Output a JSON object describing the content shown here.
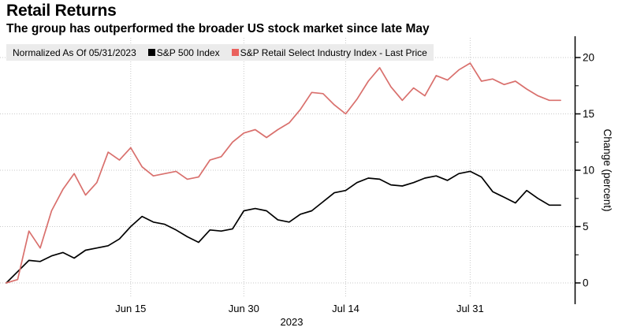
{
  "header": {
    "title": "Retail Returns",
    "subtitle": "The group has outperformed the broader US stock market since late May"
  },
  "legend": {
    "note": "Normalized As Of 05/31/2023",
    "items": [
      {
        "label": "S&P 500 Index",
        "color": "#000000"
      },
      {
        "label": "S&P Retail Select Industry Index - Last Price",
        "color": "#ea625e"
      }
    ]
  },
  "chart_data": {
    "type": "line",
    "title": "Retail Returns",
    "subtitle": "The group has outperformed the broader US stock market since late May",
    "note": "Normalized As Of 05/31/2023",
    "xlabel": "2023",
    "ylabel": "Change (percent)",
    "ylim": [
      -2,
      21.5
    ],
    "yticks": [
      0,
      5,
      10,
      15,
      20
    ],
    "yticks_minor": [
      2.5,
      7.5,
      12.5,
      17.5
    ],
    "grid": "dotted",
    "legend_position": "top",
    "axis_side": "right",
    "x": [
      "05/31",
      "06/01",
      "06/02",
      "06/05",
      "06/06",
      "06/07",
      "06/08",
      "06/09",
      "06/12",
      "06/13",
      "06/14",
      "06/15",
      "06/16",
      "06/20",
      "06/21",
      "06/22",
      "06/23",
      "06/26",
      "06/27",
      "06/28",
      "06/29",
      "06/30",
      "07/03",
      "07/05",
      "07/06",
      "07/07",
      "07/10",
      "07/11",
      "07/12",
      "07/13",
      "07/14",
      "07/17",
      "07/18",
      "07/19",
      "07/20",
      "07/21",
      "07/24",
      "07/25",
      "07/26",
      "07/27",
      "07/28",
      "07/31",
      "08/01",
      "08/02",
      "08/03",
      "08/04",
      "08/07",
      "08/08",
      "08/09",
      "08/10"
    ],
    "xticks": [
      {
        "label": "Jun 15",
        "date": "06/15"
      },
      {
        "label": "Jun 30",
        "date": "06/30"
      },
      {
        "label": "Jul 14",
        "date": "07/14"
      },
      {
        "label": "Jul 31",
        "date": "07/31"
      }
    ],
    "series": [
      {
        "id": "sp500",
        "name": "S&P 500 Index",
        "color": "#000000",
        "values": [
          0,
          1.0,
          2.0,
          1.9,
          2.4,
          2.7,
          2.2,
          2.9,
          3.1,
          3.3,
          3.9,
          5.0,
          5.9,
          5.4,
          5.2,
          4.7,
          4.1,
          3.6,
          4.7,
          4.6,
          4.8,
          6.4,
          6.6,
          6.4,
          5.6,
          5.4,
          6.1,
          6.4,
          7.2,
          8.0,
          8.2,
          8.9,
          9.3,
          9.2,
          8.7,
          8.6,
          8.9,
          9.3,
          9.5,
          9.1,
          9.7,
          9.9,
          9.4,
          8.1,
          7.6,
          7.1,
          8.2,
          7.5,
          6.9,
          6.9
        ]
      },
      {
        "id": "retail",
        "name": "S&P Retail Select Industry Index - Last Price",
        "color": "#d9706d",
        "values": [
          0,
          0.3,
          4.6,
          3.1,
          6.4,
          8.3,
          9.7,
          7.8,
          8.9,
          11.6,
          10.9,
          12.0,
          10.3,
          9.5,
          9.7,
          9.9,
          9.2,
          9.4,
          10.9,
          11.2,
          12.5,
          13.3,
          13.6,
          12.9,
          13.6,
          14.2,
          15.4,
          16.9,
          16.8,
          15.8,
          15.0,
          16.3,
          17.9,
          19.1,
          17.4,
          16.2,
          17.3,
          16.6,
          18.4,
          18.0,
          18.9,
          19.5,
          17.9,
          18.1,
          17.6,
          17.9,
          17.2,
          16.6,
          16.2,
          16.2
        ]
      }
    ]
  }
}
